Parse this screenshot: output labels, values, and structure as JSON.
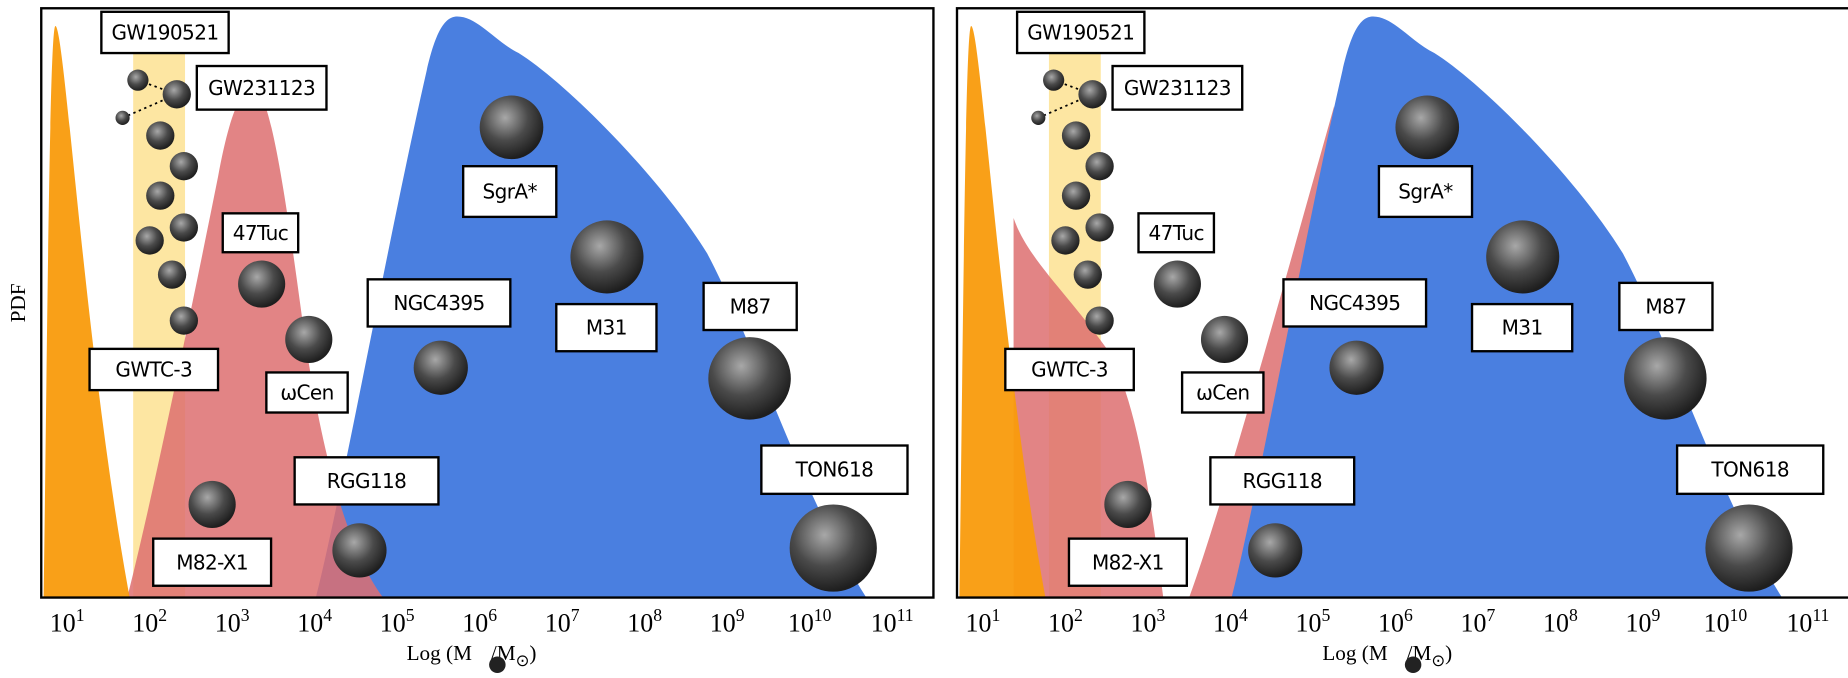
{
  "panels": [
    {
      "ylabel": "PDF",
      "xlabel": {
        "prefix": "Log (M",
        "mid": "/M",
        "sun": "⊙",
        "suffix": ")"
      },
      "ticks": [
        {
          "base": "10",
          "exp": "1"
        },
        {
          "base": "10",
          "exp": "2"
        },
        {
          "base": "10",
          "exp": "3"
        },
        {
          "base": "10",
          "exp": "4"
        },
        {
          "base": "10",
          "exp": "5"
        },
        {
          "base": "10",
          "exp": "6"
        },
        {
          "base": "10",
          "exp": "7"
        },
        {
          "base": "10",
          "exp": "8"
        },
        {
          "base": "10",
          "exp": "9"
        },
        {
          "base": "10",
          "exp": "10"
        },
        {
          "base": "10",
          "exp": "11"
        }
      ],
      "labels": [
        "GW190521",
        "GW231123",
        "47Tuc",
        "GWTC-3",
        "ωCen",
        "M82-X1",
        "RGG118",
        "NGC4395",
        "SgrA*",
        "M31",
        "M87",
        "TON618"
      ]
    },
    {
      "xlabel": {
        "prefix": "Log (M",
        "mid": "/M",
        "sun": "⊙",
        "suffix": ")"
      },
      "ticks": [
        {
          "base": "10",
          "exp": "1"
        },
        {
          "base": "10",
          "exp": "2"
        },
        {
          "base": "10",
          "exp": "3"
        },
        {
          "base": "10",
          "exp": "4"
        },
        {
          "base": "10",
          "exp": "5"
        },
        {
          "base": "10",
          "exp": "6"
        },
        {
          "base": "10",
          "exp": "7"
        },
        {
          "base": "10",
          "exp": "8"
        },
        {
          "base": "10",
          "exp": "9"
        },
        {
          "base": "10",
          "exp": "10"
        },
        {
          "base": "10",
          "exp": "11"
        }
      ],
      "labels": [
        "GW190521",
        "GW231123",
        "47Tuc",
        "GWTC-3",
        "ωCen",
        "M82-X1",
        "RGG118",
        "NGC4395",
        "SgrA*",
        "M31",
        "M87",
        "TON618"
      ]
    }
  ]
}
